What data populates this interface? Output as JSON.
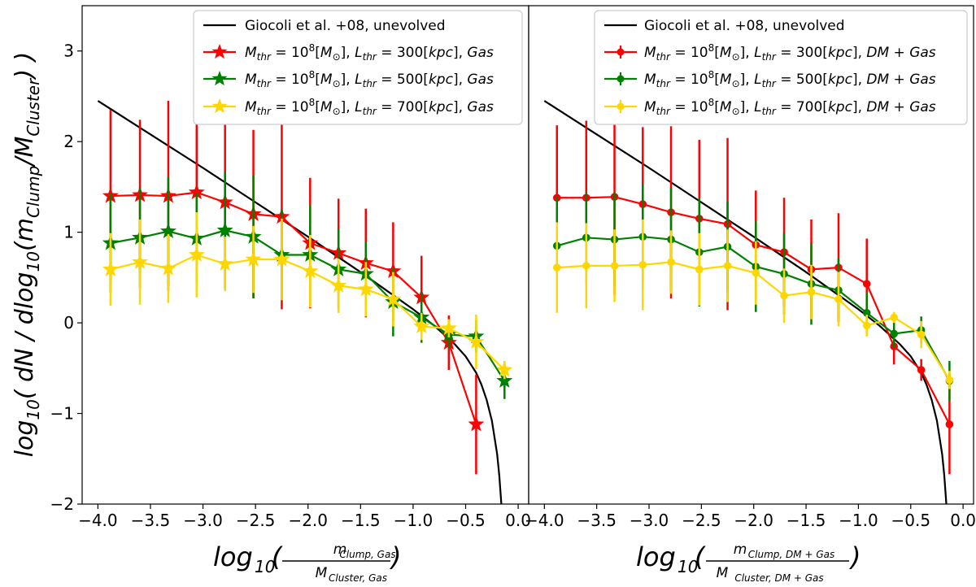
{
  "chart_data": [
    {
      "type": "line",
      "panel": "left",
      "ylabel": "log10( dN / dlog10(mClump/MCluster) )",
      "xlabel": "log10(mClump,Gas / MCluster,Gas)",
      "xlim": [
        -4.15,
        0.1
      ],
      "ylim": [
        -2,
        3.5
      ],
      "xticks": [
        -4.0,
        -3.5,
        -3.0,
        -2.5,
        -2.0,
        -1.5,
        -1.0,
        -0.5,
        0.0
      ],
      "xtick_labels": [
        "−4.0",
        "−3.5",
        "−3.0",
        "−2.5",
        "−2.0",
        "−1.5",
        "−1.0",
        "−0.5",
        "0.0"
      ],
      "yticks": [
        -2,
        -1,
        0,
        1,
        2,
        3
      ],
      "ytick_labels": [
        "−2",
        "−1",
        "0",
        "1",
        "2",
        "3"
      ],
      "legend_position": "top-right",
      "reference": {
        "name": "Giocoli et al. +08, unevolved",
        "color": "#000000",
        "x": [
          -4.0,
          -3.5,
          -3.0,
          -2.5,
          -2.0,
          -1.5,
          -1.0,
          -0.8,
          -0.6,
          -0.5,
          -0.4,
          -0.35,
          -0.3,
          -0.25,
          -0.2,
          -0.18,
          -0.16
        ],
        "y": [
          2.45,
          2.08,
          1.71,
          1.33,
          0.95,
          0.56,
          0.15,
          -0.03,
          -0.24,
          -0.37,
          -0.55,
          -0.68,
          -0.85,
          -1.08,
          -1.45,
          -1.68,
          -2.0
        ]
      },
      "series": [
        {
          "name": "Mthr = 10^8[M⊙], Lthr = 300[kpc], Gas",
          "marker": "star",
          "color": "#ff0000",
          "x": [
            -3.88,
            -3.6,
            -3.33,
            -3.06,
            -2.79,
            -2.52,
            -2.25,
            -1.98,
            -1.71,
            -1.45,
            -1.19,
            -0.92,
            -0.66,
            -0.4
          ],
          "y": [
            1.4,
            1.41,
            1.4,
            1.44,
            1.33,
            1.2,
            1.17,
            0.88,
            0.77,
            0.66,
            0.57,
            0.28,
            -0.22,
            -1.12
          ],
          "err": [
            0.95,
            0.83,
            1.05,
            0.88,
            0.95,
            0.93,
            1.02,
            0.72,
            0.6,
            0.6,
            0.54,
            0.46,
            0.3,
            0.55
          ]
        },
        {
          "name": "Mthr = 10^8[M⊙], Lthr = 500[kpc], Gas",
          "marker": "star",
          "color": "#008000",
          "x": [
            -3.88,
            -3.6,
            -3.33,
            -3.06,
            -2.79,
            -2.52,
            -2.25,
            -1.98,
            -1.71,
            -1.45,
            -1.19,
            -0.92,
            -0.66,
            -0.4,
            -0.13
          ],
          "y": [
            0.88,
            0.94,
            1.01,
            0.93,
            1.02,
            0.95,
            0.75,
            0.75,
            0.59,
            0.54,
            0.23,
            0.06,
            -0.13,
            -0.15,
            -0.64
          ],
          "err": [
            0.55,
            0.55,
            0.6,
            0.5,
            0.65,
            0.68,
            0.5,
            0.55,
            0.45,
            0.35,
            0.38,
            0.28,
            0.15,
            0.18,
            0.2
          ]
        },
        {
          "name": "Mthr = 10^8[M⊙], Lthr = 700[kpc], Gas",
          "marker": "star",
          "color": "#ffd700",
          "x": [
            -3.88,
            -3.6,
            -3.33,
            -3.06,
            -2.79,
            -2.52,
            -2.25,
            -1.98,
            -1.71,
            -1.45,
            -1.19,
            -0.92,
            -0.66,
            -0.4,
            -0.13
          ],
          "y": [
            0.59,
            0.67,
            0.6,
            0.75,
            0.65,
            0.7,
            0.7,
            0.57,
            0.41,
            0.37,
            0.26,
            -0.04,
            -0.06,
            -0.21,
            -0.52
          ],
          "err": [
            0.4,
            0.47,
            0.38,
            0.47,
            0.3,
            0.37,
            0.45,
            0.4,
            0.3,
            0.3,
            0.3,
            0.15,
            0.1,
            0.3,
            0.1
          ]
        }
      ]
    },
    {
      "type": "line",
      "panel": "right",
      "ylabel": "",
      "xlabel": "log10(mClump,DM+Gas / MCluster,DM+Gas)",
      "xlim": [
        -4.15,
        0.1
      ],
      "ylim": [
        -2,
        3.5
      ],
      "xticks": [
        -4.0,
        -3.5,
        -3.0,
        -2.5,
        -2.0,
        -1.5,
        -1.0,
        -0.5,
        0.0
      ],
      "xtick_labels": [
        "−4.0",
        "−3.5",
        "−3.0",
        "−2.5",
        "−2.0",
        "−1.5",
        "−1.0",
        "−0.5",
        "0.0"
      ],
      "legend_position": "top-right",
      "reference": {
        "name": "Giocoli et al. +08, unevolved",
        "color": "#000000",
        "x": [
          -4.0,
          -3.5,
          -3.0,
          -2.5,
          -2.0,
          -1.5,
          -1.0,
          -0.8,
          -0.6,
          -0.5,
          -0.4,
          -0.35,
          -0.3,
          -0.25,
          -0.2,
          -0.18,
          -0.16
        ],
        "y": [
          2.45,
          2.08,
          1.71,
          1.33,
          0.95,
          0.56,
          0.15,
          -0.03,
          -0.24,
          -0.37,
          -0.55,
          -0.68,
          -0.85,
          -1.08,
          -1.45,
          -1.68,
          -2.0
        ]
      },
      "series": [
        {
          "name": "Mthr = 10^8[M⊙], Lthr = 300[kpc], DM + Gas",
          "marker": "circle",
          "color": "#ff0000",
          "x": [
            -3.88,
            -3.6,
            -3.33,
            -3.06,
            -2.79,
            -2.52,
            -2.25,
            -1.98,
            -1.71,
            -1.45,
            -1.19,
            -0.92,
            -0.66,
            -0.4,
            -0.13
          ],
          "y": [
            1.38,
            1.38,
            1.39,
            1.31,
            1.22,
            1.15,
            1.09,
            0.86,
            0.78,
            0.59,
            0.61,
            0.43,
            -0.26,
            -0.52,
            -1.12
          ],
          "err": [
            0.8,
            0.85,
            1.08,
            0.85,
            0.95,
            0.87,
            0.95,
            0.6,
            0.6,
            0.55,
            0.6,
            0.5,
            0.2,
            0.12,
            0.55
          ]
        },
        {
          "name": "Mthr = 10^8[M⊙], Lthr = 500[kpc], DM + Gas",
          "marker": "circle",
          "color": "#008000",
          "x": [
            -3.88,
            -3.6,
            -3.33,
            -3.06,
            -2.79,
            -2.52,
            -2.25,
            -1.98,
            -1.71,
            -1.45,
            -1.19,
            -0.92,
            -0.66,
            -0.4,
            -0.13
          ],
          "y": [
            0.85,
            0.94,
            0.92,
            0.95,
            0.92,
            0.78,
            0.84,
            0.62,
            0.54,
            0.43,
            0.36,
            0.11,
            -0.12,
            -0.08,
            -0.64
          ],
          "err": [
            0.55,
            0.5,
            0.52,
            0.58,
            0.57,
            0.6,
            0.5,
            0.5,
            0.45,
            0.45,
            0.35,
            0.22,
            0.15,
            0.15,
            0.22
          ]
        },
        {
          "name": "Mthr = 10^8[M⊙], Lthr = 700[kpc], DM + Gas",
          "marker": "circle",
          "color": "#ffd700",
          "x": [
            -3.88,
            -3.6,
            -3.33,
            -3.06,
            -2.79,
            -2.52,
            -2.25,
            -1.98,
            -1.71,
            -1.45,
            -1.19,
            -0.92,
            -0.66,
            -0.4,
            -0.13
          ],
          "y": [
            0.61,
            0.63,
            0.63,
            0.64,
            0.67,
            0.59,
            0.63,
            0.55,
            0.3,
            0.34,
            0.26,
            -0.03,
            0.06,
            -0.13,
            -0.63
          ],
          "err": [
            0.5,
            0.47,
            0.4,
            0.5,
            0.35,
            0.4,
            0.4,
            0.35,
            0.3,
            0.3,
            0.3,
            0.12,
            0.06,
            0.15,
            0.1
          ]
        }
      ]
    }
  ]
}
